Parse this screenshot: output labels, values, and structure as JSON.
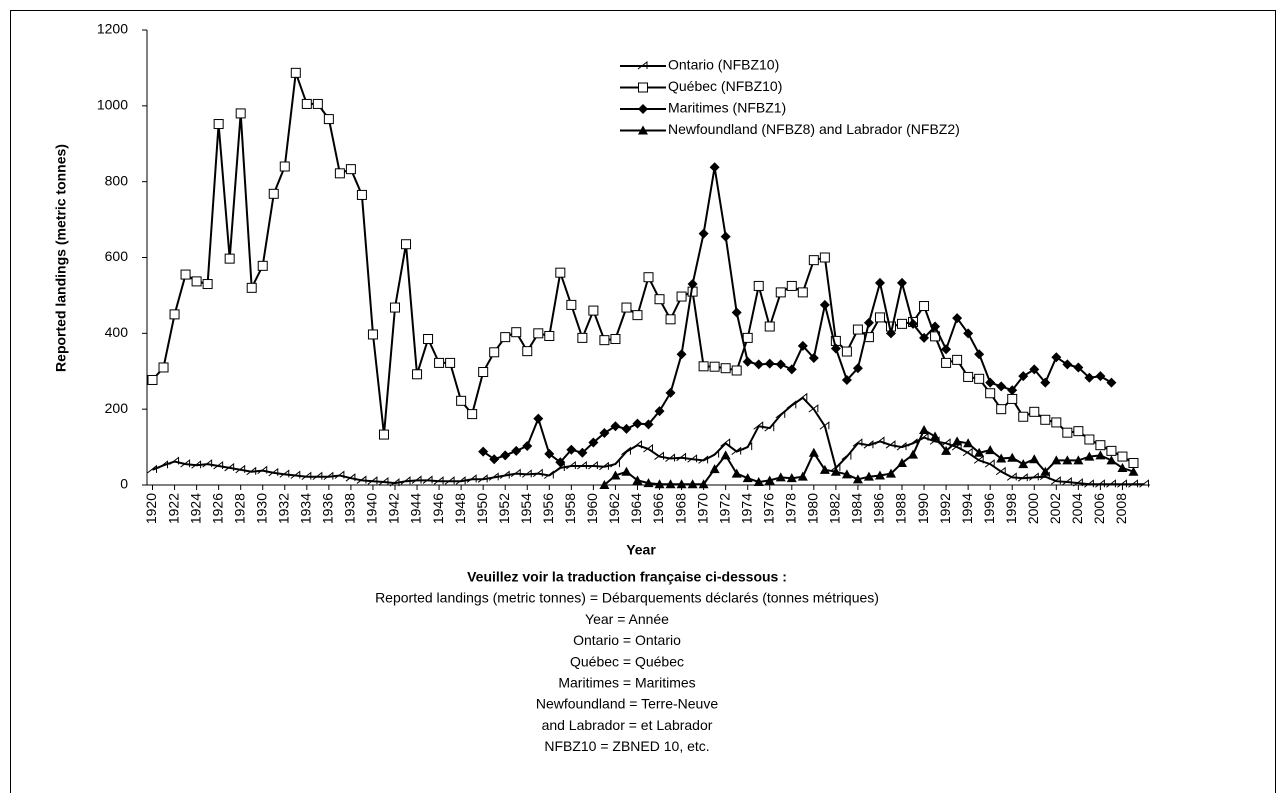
{
  "chart_data": {
    "type": "line",
    "y_axis_label": "Reported landings (metric tonnes)",
    "x_axis_label": "Year",
    "x": [
      1920,
      1921,
      1922,
      1923,
      1924,
      1925,
      1926,
      1927,
      1928,
      1929,
      1930,
      1931,
      1932,
      1933,
      1934,
      1935,
      1936,
      1937,
      1938,
      1939,
      1940,
      1941,
      1942,
      1943,
      1944,
      1945,
      1946,
      1947,
      1948,
      1949,
      1950,
      1951,
      1952,
      1953,
      1954,
      1955,
      1956,
      1957,
      1958,
      1959,
      1960,
      1961,
      1962,
      1963,
      1964,
      1965,
      1966,
      1967,
      1968,
      1969,
      1970,
      1971,
      1972,
      1973,
      1974,
      1975,
      1976,
      1977,
      1978,
      1979,
      1980,
      1981,
      1982,
      1983,
      1984,
      1985,
      1986,
      1987,
      1988,
      1989,
      1990,
      1991,
      1992,
      1993,
      1994,
      1995,
      1996,
      1997,
      1998,
      1999,
      2000,
      2001,
      2002,
      2003,
      2004,
      2005,
      2006,
      2007,
      2008,
      2009,
      2010
    ],
    "xlim": [
      1919.5,
      2010.5
    ],
    "xticks": [
      1920,
      1922,
      1924,
      1926,
      1928,
      1930,
      1932,
      1934,
      1936,
      1938,
      1940,
      1942,
      1944,
      1946,
      1948,
      1950,
      1952,
      1954,
      1956,
      1958,
      1960,
      1962,
      1964,
      1966,
      1968,
      1970,
      1972,
      1974,
      1976,
      1978,
      1980,
      1982,
      1984,
      1986,
      1988,
      1990,
      1992,
      1994,
      1996,
      1998,
      2000,
      2002,
      2004,
      2006,
      2008
    ],
    "ylim": [
      0,
      1200
    ],
    "yticks": [
      0,
      200,
      400,
      600,
      800,
      1000,
      1200
    ],
    "series": [
      {
        "name": "Ontario (NFBZ10)",
        "color": "#000000",
        "marker": "half-triangle",
        "values": [
          40,
          52,
          62,
          55,
          52,
          55,
          50,
          45,
          40,
          35,
          38,
          32,
          28,
          25,
          22,
          22,
          22,
          25,
          18,
          12,
          10,
          8,
          5,
          10,
          12,
          12,
          10,
          10,
          10,
          15,
          15,
          20,
          25,
          30,
          28,
          30,
          25,
          45,
          50,
          50,
          50,
          48,
          55,
          88,
          105,
          95,
          75,
          70,
          72,
          68,
          65,
          80,
          110,
          88,
          100,
          155,
          150,
          185,
          210,
          230,
          200,
          155,
          45,
          75,
          110,
          105,
          115,
          105,
          100,
          110,
          125,
          115,
          110,
          100,
          85,
          65,
          55,
          35,
          20,
          18,
          20,
          22,
          10,
          8,
          5,
          2,
          2,
          2,
          2,
          2,
          2
        ]
      },
      {
        "name": "Québec (NFBZ10)",
        "color": "#000000",
        "marker": "square",
        "values": [
          277,
          310,
          450,
          555,
          537,
          530,
          952,
          597,
          980,
          520,
          578,
          768,
          840,
          1087,
          1005,
          1005,
          965,
          822,
          833,
          765,
          397,
          133,
          468,
          635,
          292,
          385,
          322,
          322,
          222,
          187,
          298,
          350,
          390,
          403,
          353,
          400,
          393,
          560,
          475,
          388,
          460,
          382,
          385,
          468,
          448,
          548,
          490,
          437,
          497,
          510,
          313,
          312,
          308,
          302,
          388,
          525,
          418,
          508,
          525,
          508,
          593,
          600,
          380,
          352,
          410,
          390,
          442,
          418,
          425,
          430,
          472,
          392,
          322,
          330,
          285,
          280,
          242,
          200,
          227,
          180,
          193,
          172,
          165,
          138,
          142,
          120,
          105,
          90,
          75,
          58,
          null
        ]
      },
      {
        "name": "Maritimes (NFBZ1)",
        "color": "#000000",
        "marker": "diamond",
        "values": [
          null,
          null,
          null,
          null,
          null,
          null,
          null,
          null,
          null,
          null,
          null,
          null,
          null,
          null,
          null,
          null,
          null,
          null,
          null,
          null,
          null,
          null,
          null,
          null,
          null,
          null,
          null,
          null,
          null,
          null,
          88,
          68,
          78,
          90,
          103,
          175,
          82,
          60,
          93,
          85,
          112,
          137,
          155,
          148,
          162,
          160,
          195,
          243,
          345,
          530,
          663,
          838,
          655,
          455,
          325,
          318,
          320,
          318,
          305,
          367,
          335,
          475,
          360,
          277,
          308,
          428,
          533,
          400,
          533,
          425,
          388,
          418,
          358,
          440,
          400,
          345,
          270,
          260,
          250,
          287,
          305,
          270,
          337,
          318,
          310,
          283,
          287,
          270,
          null,
          null,
          null
        ]
      },
      {
        "name": "Newfoundland (NFBZ8)  and Labrador (NFBZ2)",
        "color": "#000000",
        "marker": "triangle",
        "values": [
          null,
          null,
          null,
          null,
          null,
          null,
          null,
          null,
          null,
          null,
          null,
          null,
          null,
          null,
          null,
          null,
          null,
          null,
          null,
          null,
          null,
          null,
          null,
          null,
          null,
          null,
          null,
          null,
          null,
          null,
          null,
          null,
          null,
          null,
          null,
          null,
          null,
          null,
          null,
          null,
          null,
          0,
          25,
          35,
          12,
          5,
          2,
          2,
          2,
          2,
          2,
          42,
          78,
          30,
          18,
          8,
          12,
          20,
          18,
          22,
          85,
          40,
          35,
          28,
          15,
          22,
          25,
          30,
          58,
          80,
          145,
          128,
          90,
          115,
          110,
          85,
          92,
          70,
          72,
          55,
          68,
          35,
          65,
          65,
          65,
          75,
          78,
          65,
          45,
          35,
          null
        ]
      }
    ],
    "footnote_title": "Veuillez voir la traduction française ci-dessous :",
    "footnote_lines": [
      "Reported landings (metric tonnes) = Débarquements déclarés (tonnes métriques)",
      "Year = Année",
      "Ontario = Ontario",
      "Québec = Québec",
      "Maritimes = Maritimes",
      "Newfoundland = Terre-Neuve",
      "and Labrador = et Labrador",
      "NFBZ10 = ZBNED 10, etc."
    ]
  }
}
